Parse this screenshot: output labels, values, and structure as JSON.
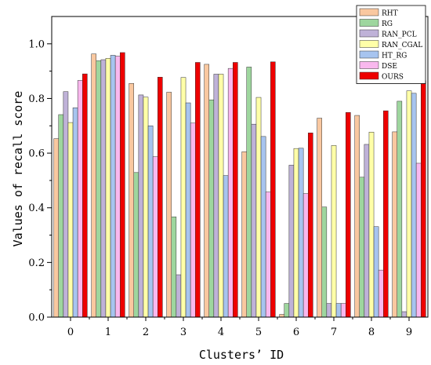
{
  "chart_data": {
    "type": "bar",
    "title": "",
    "xlabel": "Clusters’ ID",
    "ylabel": "Values of recall score",
    "categories": [
      "0",
      "1",
      "2",
      "3",
      "4",
      "5",
      "6",
      "7",
      "8",
      "9"
    ],
    "ylim": [
      0,
      1.1
    ],
    "yticks": [
      "0.0",
      "0.2",
      "0.4",
      "0.6",
      "0.8",
      "1.0"
    ],
    "grid": false,
    "legend_position": "top-right",
    "series": [
      {
        "name": "RHT",
        "color": "#f9c8a0",
        "values": [
          0.653,
          0.963,
          0.855,
          0.823,
          0.925,
          0.605,
          0.01,
          0.728,
          0.738,
          0.678
        ]
      },
      {
        "name": "RG",
        "color": "#9ed69e",
        "values": [
          0.741,
          0.938,
          0.529,
          0.367,
          0.795,
          0.915,
          0.05,
          0.403,
          0.512,
          0.79
        ]
      },
      {
        "name": "RAN_PCL",
        "color": "#bfb2d8",
        "values": [
          0.825,
          0.942,
          0.813,
          0.155,
          0.889,
          0.706,
          0.556,
          0.05,
          0.632,
          0.02
        ]
      },
      {
        "name": "RAN_CGAL",
        "color": "#ffffa8",
        "values": [
          0.712,
          0.947,
          0.805,
          0.877,
          0.889,
          0.804,
          0.617,
          0.628,
          0.677,
          0.828
        ]
      },
      {
        "name": "HT_RG",
        "color": "#a7c4ef",
        "values": [
          0.766,
          0.958,
          0.7,
          0.784,
          0.518,
          0.661,
          0.618,
          0.05,
          0.331,
          0.819
        ]
      },
      {
        "name": "DSE",
        "color": "#f9b8ee",
        "values": [
          0.866,
          0.955,
          0.587,
          0.71,
          0.91,
          0.458,
          0.452,
          0.05,
          0.172,
          0.563
        ]
      },
      {
        "name": "OURS",
        "color": "#ee0000",
        "values": [
          0.89,
          0.968,
          0.878,
          0.932,
          0.932,
          0.934,
          0.674,
          0.749,
          0.755,
          0.865
        ]
      }
    ]
  }
}
